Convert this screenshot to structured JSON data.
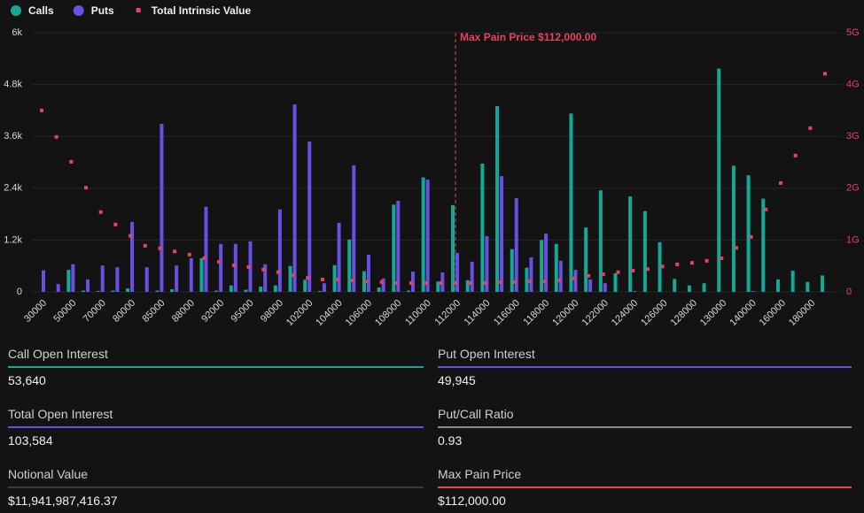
{
  "chart_data": {
    "type": "bar",
    "categories": [
      "30000",
      null,
      "50000",
      null,
      "70000",
      null,
      "80000",
      null,
      "85000",
      null,
      "88000",
      null,
      "92000",
      null,
      "95000",
      null,
      "98000",
      null,
      "102000",
      null,
      "104000",
      null,
      "106000",
      null,
      "108000",
      null,
      "110000",
      null,
      "112000",
      null,
      "114000",
      null,
      "116000",
      null,
      "118000",
      null,
      "120000",
      null,
      "122000",
      null,
      "124000",
      null,
      "126000",
      null,
      "128000",
      null,
      "130000",
      null,
      "140000",
      null,
      "160000",
      null,
      "180000",
      null
    ],
    "series": [
      {
        "name": "Calls",
        "color": "#14a899",
        "values": [
          0,
          0,
          510,
          30,
          20,
          30,
          80,
          0,
          30,
          60,
          0,
          780,
          30,
          150,
          50,
          120,
          150,
          600,
          280,
          20,
          620,
          1210,
          480,
          100,
          2020,
          30,
          2650,
          240,
          2010,
          270,
          2970,
          4300,
          990,
          560,
          1200,
          1110,
          4130,
          1490,
          2350,
          430,
          2210,
          1870,
          1150,
          300,
          150,
          200,
          5170,
          2920,
          2700,
          2160,
          290,
          490,
          230,
          380
        ]
      },
      {
        "name": "Puts",
        "color": "#6a4ee6",
        "values": [
          500,
          180,
          640,
          290,
          610,
          570,
          1620,
          570,
          3890,
          610,
          780,
          1970,
          1110,
          1110,
          1170,
          640,
          1910,
          4340,
          3480,
          200,
          1600,
          2930,
          860,
          310,
          2110,
          470,
          2600,
          450,
          900,
          700,
          1290,
          2680,
          2170,
          800,
          1350,
          720,
          510,
          290,
          200,
          0,
          20,
          0,
          0,
          0,
          0,
          0,
          0,
          0,
          20,
          0,
          0,
          0,
          0,
          0
        ]
      },
      {
        "name": "Total Intrinsic Value",
        "color": "#e8435a",
        "type": "scatter",
        "axis": "y2",
        "values": [
          3.5,
          2.99,
          2.51,
          2.01,
          1.54,
          1.3,
          1.08,
          0.89,
          0.84,
          0.78,
          0.72,
          0.65,
          0.58,
          0.51,
          0.48,
          0.43,
          0.38,
          0.32,
          0.27,
          0.24,
          0.24,
          0.22,
          0.2,
          0.19,
          0.17,
          0.17,
          0.17,
          0.17,
          0.17,
          0.17,
          0.17,
          0.19,
          0.19,
          0.2,
          0.2,
          0.22,
          0.26,
          0.31,
          0.34,
          0.38,
          0.41,
          0.44,
          0.49,
          0.53,
          0.56,
          0.6,
          0.65,
          0.85,
          1.06,
          1.59,
          2.1,
          2.63,
          3.16,
          4.21
        ]
      }
    ],
    "ylim": [
      0,
      6000
    ],
    "yticks": [
      0,
      {
        "value": 1200,
        "label": "1.2k"
      },
      {
        "value": 2400,
        "label": "2.4k"
      },
      {
        "value": 3600,
        "label": "3.6k"
      },
      {
        "value": 4800,
        "label": "4.8k"
      },
      {
        "value": 6000,
        "label": "6k"
      }
    ],
    "y2lim": [
      0,
      5
    ],
    "y2ticks": [
      0,
      {
        "value": 1,
        "label": "1G"
      },
      {
        "value": 2,
        "label": "2G"
      },
      {
        "value": 3,
        "label": "3G"
      },
      {
        "value": 4,
        "label": "4G"
      },
      {
        "value": 5,
        "label": "5G"
      }
    ],
    "grid": true,
    "annotation": {
      "text": "Max Pain Price $112,000.00",
      "x": "112000",
      "color": "#e8435a"
    }
  },
  "stats": [
    {
      "label": "Call Open Interest",
      "value": "53,640",
      "color": "#14a899"
    },
    {
      "label": "Put Open Interest",
      "value": "49,945",
      "color": "#6a4ee6"
    },
    {
      "label": "Total Open Interest",
      "value": "103,584",
      "color": "#6a4ee6"
    },
    {
      "label": "Put/Call Ratio",
      "value": "0.93",
      "color": "#8a8a8a"
    },
    {
      "label": "Notional Value",
      "value": "$11,941,987,416.37",
      "color": "#3a3a3a"
    },
    {
      "label": "Max Pain Price",
      "value": "$112,000.00",
      "color": "#e8435a"
    }
  ]
}
